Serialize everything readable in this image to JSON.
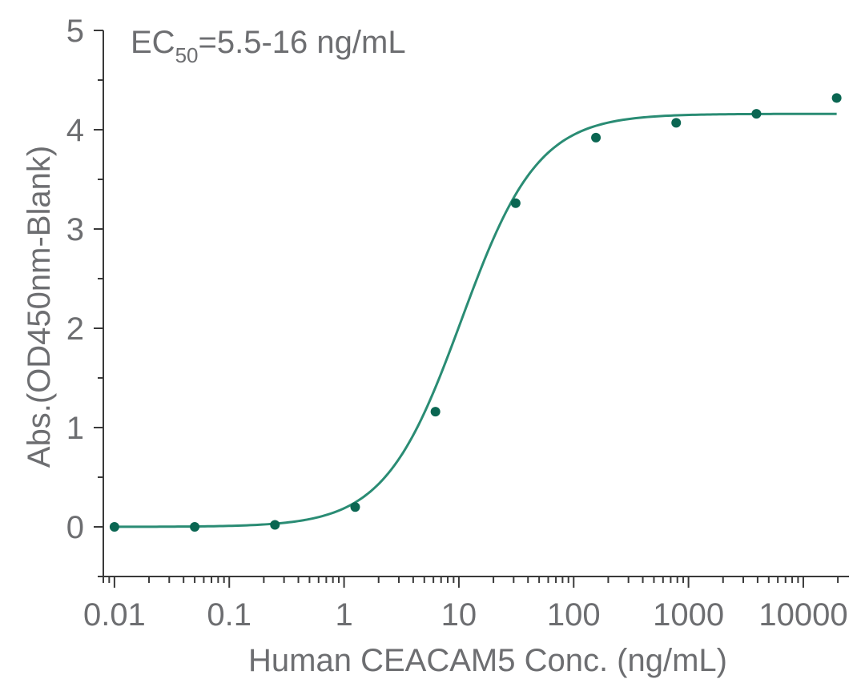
{
  "chart_data": {
    "type": "scatter",
    "xlabel": "Human CEACAM5 Conc. (ng/mL)",
    "ylabel": "Abs.(OD450nm-Blank)",
    "xscale": "log",
    "xlim": [
      0.008,
      25000
    ],
    "ylim": [
      -0.5,
      5
    ],
    "grid": false,
    "x_tick_values": [
      0.01,
      0.1,
      1,
      10,
      100,
      1000,
      10000
    ],
    "x_tick_labels": [
      "0.01",
      "0.1",
      "1",
      "10",
      "100",
      "1000",
      "10000"
    ],
    "y_tick_values": [
      0,
      1,
      2,
      3,
      4,
      5
    ],
    "y_tick_labels": [
      "0",
      "1",
      "2",
      "3",
      "4",
      "5"
    ],
    "annotation": {
      "main": "EC",
      "subscript": "50",
      "rest": "=5.5-16 ng/mL"
    },
    "series": [
      {
        "x": [
          0.01,
          0.05,
          0.25,
          1.25,
          6.25,
          31.25,
          156.25,
          781.25,
          3906.25,
          19531.25
        ],
        "y": [
          0.0,
          0.0,
          0.02,
          0.2,
          1.16,
          3.26,
          3.92,
          4.07,
          4.16,
          4.32
        ],
        "color": "#0a6652"
      }
    ],
    "fit_curve": {
      "model": "4PL",
      "bottom": 0.0,
      "top": 4.16,
      "ec50": 10.5,
      "hill": 1.3,
      "color": "#2a8c74"
    }
  }
}
